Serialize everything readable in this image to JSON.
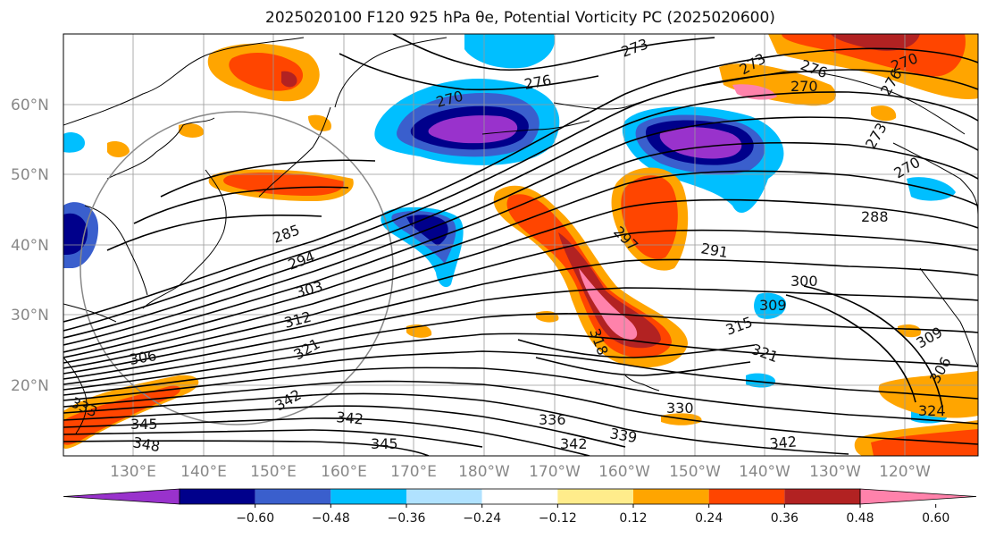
{
  "title": "2025020100 F120 925 hPa θe, Potential Vorticity PC (2025020600)",
  "lat_labels": [
    "60°N",
    "50°N",
    "40°N",
    "30°N",
    "20°N"
  ],
  "lon_labels": [
    "130°E",
    "140°E",
    "150°E",
    "160°E",
    "170°E",
    "180°W",
    "170°W",
    "160°W",
    "150°W",
    "140°W",
    "130°W",
    "120°W"
  ],
  "colorbar": {
    "colors": [
      "#9932cc",
      "#00008b",
      "#3a5fcd",
      "#00bfff",
      "#b0e2ff",
      "#ffffff",
      "#ffec8b",
      "#ffa500",
      "#ff4500",
      "#b22222",
      "#ff82ab"
    ],
    "tick_labels": [
      "-0.60",
      "-0.48",
      "-0.36",
      "-0.24",
      "-0.12",
      "0.12",
      "0.24",
      "0.36",
      "0.48",
      "0.60"
    ]
  },
  "contour_labels": [
    {
      "text": "273"
    },
    {
      "text": "276"
    },
    {
      "text": "270"
    },
    {
      "text": "270"
    },
    {
      "text": "276"
    },
    {
      "text": "270"
    },
    {
      "text": "276"
    },
    {
      "text": "273"
    },
    {
      "text": "273"
    },
    {
      "text": "270"
    },
    {
      "text": "285"
    },
    {
      "text": "294"
    },
    {
      "text": "303"
    },
    {
      "text": "312"
    },
    {
      "text": "306"
    },
    {
      "text": "321"
    },
    {
      "text": "342"
    },
    {
      "text": "333"
    },
    {
      "text": "345"
    },
    {
      "text": "348"
    },
    {
      "text": "342"
    },
    {
      "text": "345"
    },
    {
      "text": "336"
    },
    {
      "text": "342"
    },
    {
      "text": "339"
    },
    {
      "text": "330"
    },
    {
      "text": "342"
    },
    {
      "text": "297"
    },
    {
      "text": "291"
    },
    {
      "text": "288"
    },
    {
      "text": "300"
    },
    {
      "text": "315"
    },
    {
      "text": "309"
    },
    {
      "text": "321"
    },
    {
      "text": "318"
    },
    {
      "text": "309"
    },
    {
      "text": "306"
    },
    {
      "text": "324"
    }
  ]
}
